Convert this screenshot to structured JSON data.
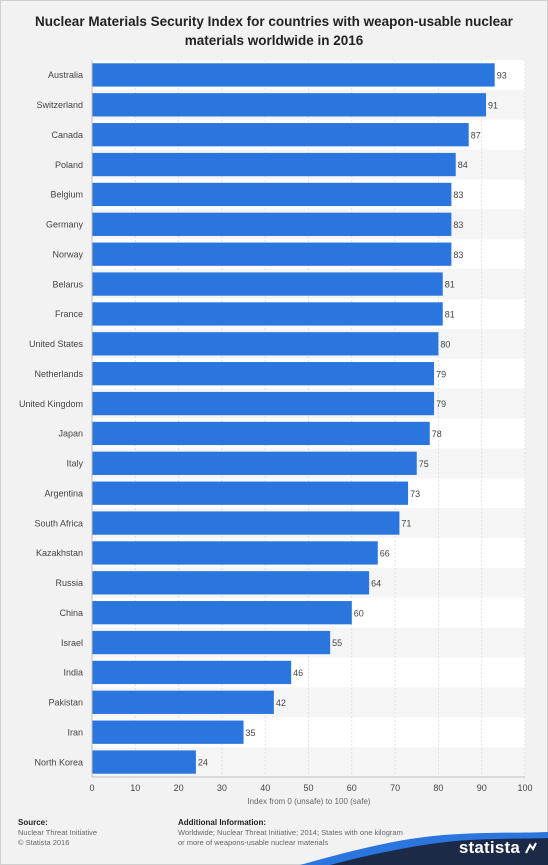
{
  "title": "Nuclear Materials Security Index for countries with weapon-usable nuclear materials worldwide in 2016",
  "chart_data": {
    "type": "bar",
    "orientation": "horizontal",
    "categories": [
      "Australia",
      "Switzerland",
      "Canada",
      "Poland",
      "Belgium",
      "Germany",
      "Norway",
      "Belarus",
      "France",
      "United States",
      "Netherlands",
      "United Kingdom",
      "Japan",
      "Italy",
      "Argentina",
      "South Africa",
      "Kazakhstan",
      "Russia",
      "China",
      "Israel",
      "India",
      "Pakistan",
      "Iran",
      "North Korea"
    ],
    "values": [
      93,
      91,
      87,
      84,
      83,
      83,
      83,
      81,
      81,
      80,
      79,
      79,
      78,
      75,
      73,
      71,
      66,
      64,
      60,
      55,
      46,
      42,
      35,
      24
    ],
    "xlabel": "Index from 0 (unsafe) to 100 (safe)",
    "ylabel": "",
    "xlim": [
      0,
      100
    ],
    "xticks": [
      0,
      10,
      20,
      30,
      40,
      50,
      60,
      70,
      80,
      90,
      100
    ],
    "bar_color": "#2a75de",
    "grid": true
  },
  "footer": {
    "source_heading": "Source:",
    "source_lines": [
      "Nuclear Threat Initiative",
      "© Statista 2016"
    ],
    "info_heading": "Additional Information:",
    "info_text": "Worldwide; Nuclear Threat Initiative; 2014; States with one kilogram or more of weapons-usable nuclear materials"
  },
  "brand": "statista",
  "colors": {
    "wave_dark": "#1c2a48",
    "wave_light": "#2a75de"
  }
}
